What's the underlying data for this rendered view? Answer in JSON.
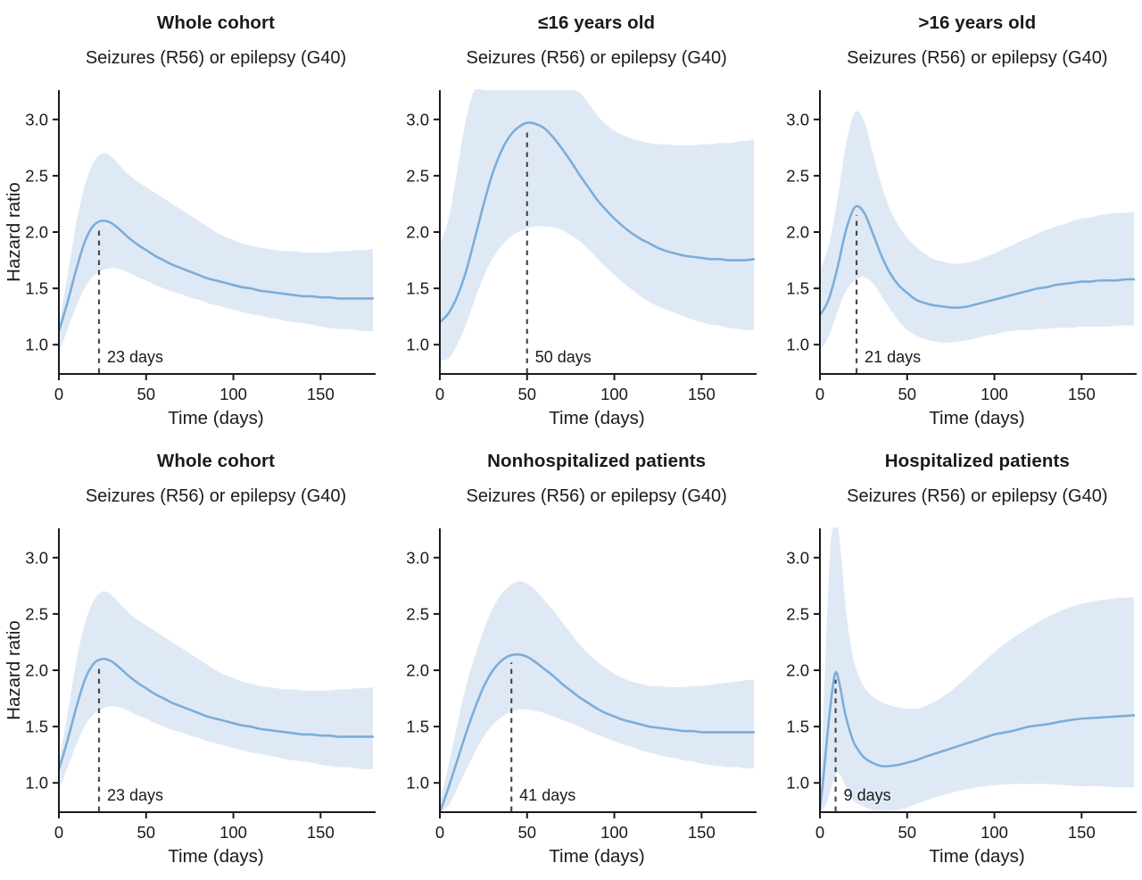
{
  "figure": {
    "background": "#ffffff",
    "colors": {
      "line": "#7cadd8",
      "band": "#dfe9f6",
      "dashed": "#4a4a4a",
      "axis": "#1a1a1a",
      "text": "#1a1a1a"
    }
  },
  "chart_data": [
    {
      "type": "line",
      "title": "Whole cohort",
      "subtitle": "Seizures (R56) or epilepsy (G40)",
      "xlabel": "Time (days)",
      "ylabel": "Hazard ratio",
      "xlim": [
        0,
        180
      ],
      "ylim": [
        0.74,
        3.26
      ],
      "xticks": [
        0,
        50,
        100,
        150
      ],
      "yticks": [
        1.0,
        1.5,
        2.0,
        2.5,
        3.0
      ],
      "grid": false,
      "peak": {
        "day": 23,
        "label": "23 days"
      },
      "x": [
        0,
        5,
        10,
        15,
        20,
        25,
        30,
        35,
        40,
        45,
        50,
        55,
        60,
        65,
        70,
        75,
        80,
        85,
        90,
        95,
        100,
        105,
        110,
        115,
        120,
        125,
        130,
        135,
        140,
        145,
        150,
        155,
        160,
        165,
        170,
        175,
        180
      ],
      "hazard_ratio": [
        1.12,
        1.38,
        1.67,
        1.92,
        2.06,
        2.1,
        2.08,
        2.02,
        1.95,
        1.89,
        1.84,
        1.79,
        1.75,
        1.71,
        1.68,
        1.65,
        1.62,
        1.59,
        1.57,
        1.55,
        1.53,
        1.51,
        1.5,
        1.48,
        1.47,
        1.46,
        1.45,
        1.44,
        1.43,
        1.43,
        1.42,
        1.42,
        1.41,
        1.41,
        1.41,
        1.41,
        1.41
      ],
      "ci_upper": [
        1.18,
        1.62,
        2.08,
        2.42,
        2.62,
        2.7,
        2.67,
        2.59,
        2.51,
        2.45,
        2.4,
        2.35,
        2.3,
        2.25,
        2.2,
        2.15,
        2.1,
        2.05,
        2.0,
        1.96,
        1.93,
        1.9,
        1.88,
        1.86,
        1.85,
        1.84,
        1.83,
        1.83,
        1.82,
        1.82,
        1.82,
        1.82,
        1.83,
        1.83,
        1.84,
        1.84,
        1.85
      ],
      "ci_lower": [
        0.92,
        1.14,
        1.34,
        1.51,
        1.61,
        1.66,
        1.68,
        1.67,
        1.64,
        1.6,
        1.57,
        1.53,
        1.5,
        1.47,
        1.45,
        1.42,
        1.4,
        1.37,
        1.35,
        1.33,
        1.31,
        1.29,
        1.27,
        1.26,
        1.24,
        1.23,
        1.21,
        1.2,
        1.19,
        1.18,
        1.16,
        1.15,
        1.14,
        1.14,
        1.13,
        1.12,
        1.12
      ]
    },
    {
      "type": "line",
      "title": "≤16 years old",
      "subtitle": "Seizures (R56) or epilepsy (G40)",
      "xlabel": "Time (days)",
      "ylabel": "",
      "xlim": [
        0,
        180
      ],
      "ylim": [
        0.74,
        3.26
      ],
      "xticks": [
        0,
        50,
        100,
        150
      ],
      "yticks": [
        1.0,
        1.5,
        2.0,
        2.5,
        3.0
      ],
      "grid": false,
      "peak": {
        "day": 50,
        "label": "50 days"
      },
      "x": [
        0,
        5,
        10,
        15,
        20,
        25,
        30,
        35,
        40,
        45,
        50,
        55,
        60,
        65,
        70,
        75,
        80,
        85,
        90,
        95,
        100,
        105,
        110,
        115,
        120,
        125,
        130,
        135,
        140,
        145,
        150,
        155,
        160,
        165,
        170,
        175,
        180
      ],
      "hazard_ratio": [
        1.2,
        1.28,
        1.43,
        1.65,
        1.94,
        2.24,
        2.51,
        2.71,
        2.85,
        2.93,
        2.97,
        2.96,
        2.92,
        2.84,
        2.74,
        2.63,
        2.51,
        2.4,
        2.29,
        2.2,
        2.12,
        2.05,
        1.99,
        1.94,
        1.9,
        1.86,
        1.83,
        1.81,
        1.79,
        1.78,
        1.77,
        1.76,
        1.76,
        1.75,
        1.75,
        1.75,
        1.76
      ],
      "ci_upper": [
        1.88,
        2.12,
        2.55,
        3.0,
        3.26,
        3.26,
        3.26,
        3.26,
        3.26,
        3.26,
        3.26,
        3.26,
        3.26,
        3.26,
        3.26,
        3.26,
        3.24,
        3.15,
        3.04,
        2.96,
        2.9,
        2.86,
        2.83,
        2.81,
        2.79,
        2.78,
        2.78,
        2.77,
        2.77,
        2.77,
        2.78,
        2.78,
        2.79,
        2.79,
        2.8,
        2.81,
        2.82
      ],
      "ci_lower": [
        0.86,
        0.88,
        1.0,
        1.18,
        1.4,
        1.6,
        1.76,
        1.87,
        1.95,
        2.0,
        2.03,
        2.05,
        2.05,
        2.04,
        2.02,
        1.97,
        1.92,
        1.85,
        1.77,
        1.69,
        1.62,
        1.55,
        1.49,
        1.43,
        1.38,
        1.34,
        1.31,
        1.28,
        1.25,
        1.22,
        1.2,
        1.18,
        1.17,
        1.15,
        1.14,
        1.13,
        1.13
      ]
    },
    {
      "type": "line",
      "title": ">16 years old",
      "subtitle": "Seizures (R56) or epilepsy (G40)",
      "xlabel": "Time (days)",
      "ylabel": "",
      "xlim": [
        0,
        180
      ],
      "ylim": [
        0.74,
        3.26
      ],
      "xticks": [
        0,
        50,
        100,
        150
      ],
      "yticks": [
        1.0,
        1.5,
        2.0,
        2.5,
        3.0
      ],
      "grid": false,
      "peak": {
        "day": 21,
        "label": "21 days"
      },
      "x": [
        0,
        5,
        10,
        15,
        20,
        25,
        30,
        35,
        40,
        45,
        50,
        55,
        60,
        65,
        70,
        75,
        80,
        85,
        90,
        95,
        100,
        105,
        110,
        115,
        120,
        125,
        130,
        135,
        140,
        145,
        150,
        155,
        160,
        165,
        170,
        175,
        180
      ],
      "hazard_ratio": [
        1.26,
        1.4,
        1.68,
        2.02,
        2.22,
        2.18,
        2.0,
        1.8,
        1.64,
        1.53,
        1.46,
        1.4,
        1.37,
        1.35,
        1.34,
        1.33,
        1.33,
        1.34,
        1.36,
        1.38,
        1.4,
        1.42,
        1.44,
        1.46,
        1.48,
        1.5,
        1.51,
        1.53,
        1.54,
        1.55,
        1.56,
        1.56,
        1.57,
        1.57,
        1.57,
        1.58,
        1.58
      ],
      "ci_upper": [
        1.66,
        1.88,
        2.28,
        2.78,
        3.06,
        3.0,
        2.72,
        2.43,
        2.21,
        2.06,
        1.95,
        1.87,
        1.81,
        1.76,
        1.74,
        1.72,
        1.72,
        1.73,
        1.75,
        1.78,
        1.81,
        1.85,
        1.88,
        1.92,
        1.95,
        1.99,
        2.02,
        2.05,
        2.07,
        2.1,
        2.12,
        2.13,
        2.15,
        2.16,
        2.17,
        2.17,
        2.18
      ],
      "ci_lower": [
        0.95,
        1.07,
        1.29,
        1.48,
        1.57,
        1.6,
        1.55,
        1.44,
        1.32,
        1.21,
        1.13,
        1.08,
        1.05,
        1.03,
        1.02,
        1.02,
        1.03,
        1.04,
        1.06,
        1.08,
        1.09,
        1.11,
        1.12,
        1.13,
        1.13,
        1.14,
        1.14,
        1.15,
        1.15,
        1.15,
        1.16,
        1.16,
        1.16,
        1.16,
        1.17,
        1.17,
        1.17
      ]
    },
    {
      "type": "line",
      "title": "Whole cohort",
      "subtitle": "Seizures (R56) or epilepsy (G40)",
      "xlabel": "Time (days)",
      "ylabel": "Hazard ratio",
      "xlim": [
        0,
        180
      ],
      "ylim": [
        0.74,
        3.26
      ],
      "xticks": [
        0,
        50,
        100,
        150
      ],
      "yticks": [
        1.0,
        1.5,
        2.0,
        2.5,
        3.0
      ],
      "grid": false,
      "peak": {
        "day": 23,
        "label": "23 days"
      },
      "x": [
        0,
        5,
        10,
        15,
        20,
        25,
        30,
        35,
        40,
        45,
        50,
        55,
        60,
        65,
        70,
        75,
        80,
        85,
        90,
        95,
        100,
        105,
        110,
        115,
        120,
        125,
        130,
        135,
        140,
        145,
        150,
        155,
        160,
        165,
        170,
        175,
        180
      ],
      "hazard_ratio": [
        1.12,
        1.38,
        1.67,
        1.92,
        2.06,
        2.1,
        2.08,
        2.02,
        1.95,
        1.89,
        1.84,
        1.79,
        1.75,
        1.71,
        1.68,
        1.65,
        1.62,
        1.59,
        1.57,
        1.55,
        1.53,
        1.51,
        1.5,
        1.48,
        1.47,
        1.46,
        1.45,
        1.44,
        1.43,
        1.43,
        1.42,
        1.42,
        1.41,
        1.41,
        1.41,
        1.41,
        1.41
      ],
      "ci_upper": [
        1.18,
        1.62,
        2.08,
        2.42,
        2.62,
        2.7,
        2.67,
        2.59,
        2.51,
        2.45,
        2.4,
        2.35,
        2.3,
        2.25,
        2.2,
        2.15,
        2.1,
        2.05,
        2.0,
        1.96,
        1.93,
        1.9,
        1.88,
        1.86,
        1.85,
        1.84,
        1.83,
        1.83,
        1.82,
        1.82,
        1.82,
        1.82,
        1.83,
        1.83,
        1.84,
        1.84,
        1.85
      ],
      "ci_lower": [
        0.92,
        1.14,
        1.34,
        1.51,
        1.61,
        1.66,
        1.68,
        1.67,
        1.64,
        1.6,
        1.57,
        1.53,
        1.5,
        1.47,
        1.45,
        1.42,
        1.4,
        1.37,
        1.35,
        1.33,
        1.31,
        1.29,
        1.27,
        1.26,
        1.24,
        1.23,
        1.21,
        1.2,
        1.19,
        1.18,
        1.16,
        1.15,
        1.14,
        1.14,
        1.13,
        1.12,
        1.12
      ]
    },
    {
      "type": "line",
      "title": "Nonhospitalized patients",
      "subtitle": "Seizures (R56) or epilepsy (G40)",
      "xlabel": "Time (days)",
      "ylabel": "",
      "xlim": [
        0,
        180
      ],
      "ylim": [
        0.74,
        3.26
      ],
      "xticks": [
        0,
        50,
        100,
        150
      ],
      "yticks": [
        1.0,
        1.5,
        2.0,
        2.5,
        3.0
      ],
      "grid": false,
      "peak": {
        "day": 41,
        "label": "41 days"
      },
      "x": [
        0,
        5,
        10,
        15,
        20,
        25,
        30,
        35,
        40,
        45,
        50,
        55,
        60,
        65,
        70,
        75,
        80,
        85,
        90,
        95,
        100,
        105,
        110,
        115,
        120,
        125,
        130,
        135,
        140,
        145,
        150,
        155,
        160,
        165,
        170,
        175,
        180
      ],
      "hazard_ratio": [
        0.74,
        0.96,
        1.2,
        1.44,
        1.66,
        1.85,
        1.99,
        2.08,
        2.13,
        2.14,
        2.12,
        2.07,
        2.01,
        1.95,
        1.88,
        1.82,
        1.76,
        1.71,
        1.66,
        1.62,
        1.59,
        1.56,
        1.54,
        1.52,
        1.5,
        1.49,
        1.48,
        1.47,
        1.46,
        1.46,
        1.45,
        1.45,
        1.45,
        1.45,
        1.45,
        1.45,
        1.45
      ],
      "ci_upper": [
        0.82,
        1.16,
        1.52,
        1.86,
        2.12,
        2.35,
        2.54,
        2.67,
        2.75,
        2.79,
        2.77,
        2.71,
        2.62,
        2.53,
        2.43,
        2.33,
        2.23,
        2.15,
        2.08,
        2.02,
        1.97,
        1.93,
        1.9,
        1.88,
        1.86,
        1.86,
        1.85,
        1.85,
        1.85,
        1.86,
        1.86,
        1.87,
        1.88,
        1.89,
        1.9,
        1.91,
        1.92
      ],
      "ci_lower": [
        0.74,
        0.8,
        0.95,
        1.11,
        1.27,
        1.41,
        1.51,
        1.58,
        1.63,
        1.65,
        1.65,
        1.64,
        1.62,
        1.59,
        1.56,
        1.53,
        1.5,
        1.46,
        1.43,
        1.4,
        1.37,
        1.34,
        1.32,
        1.29,
        1.27,
        1.25,
        1.23,
        1.22,
        1.2,
        1.19,
        1.17,
        1.16,
        1.15,
        1.14,
        1.14,
        1.13,
        1.13
      ]
    },
    {
      "type": "line",
      "title": "Hospitalized patients",
      "subtitle": "Seizures (R56) or epilepsy (G40)",
      "xlabel": "Time (days)",
      "ylabel": "",
      "xlim": [
        0,
        180
      ],
      "ylim": [
        0.74,
        3.26
      ],
      "xticks": [
        0,
        50,
        100,
        150
      ],
      "yticks": [
        1.0,
        1.5,
        2.0,
        2.5,
        3.0
      ],
      "grid": false,
      "peak": {
        "day": 9,
        "label": "9 days"
      },
      "x": [
        0,
        2,
        4,
        6,
        8,
        9,
        10,
        12,
        14,
        16,
        18,
        20,
        25,
        30,
        35,
        40,
        45,
        50,
        55,
        60,
        70,
        80,
        90,
        100,
        110,
        120,
        130,
        140,
        150,
        160,
        170,
        180
      ],
      "hazard_ratio": [
        0.76,
        1.05,
        1.38,
        1.68,
        1.92,
        1.98,
        1.96,
        1.82,
        1.65,
        1.52,
        1.42,
        1.34,
        1.23,
        1.18,
        1.15,
        1.15,
        1.16,
        1.18,
        1.2,
        1.23,
        1.28,
        1.33,
        1.38,
        1.43,
        1.46,
        1.5,
        1.52,
        1.55,
        1.57,
        1.58,
        1.59,
        1.6
      ],
      "ci_upper": [
        0.92,
        1.65,
        2.45,
        3.1,
        3.3,
        3.3,
        3.3,
        3.05,
        2.68,
        2.4,
        2.2,
        2.05,
        1.86,
        1.77,
        1.72,
        1.69,
        1.67,
        1.66,
        1.66,
        1.68,
        1.76,
        1.88,
        2.02,
        2.16,
        2.28,
        2.38,
        2.47,
        2.54,
        2.59,
        2.62,
        2.64,
        2.65
      ],
      "ci_lower": [
        0.74,
        0.77,
        0.83,
        0.93,
        1.03,
        1.07,
        1.09,
        1.06,
        0.99,
        0.92,
        0.87,
        0.83,
        0.79,
        0.76,
        0.75,
        0.75,
        0.76,
        0.78,
        0.81,
        0.84,
        0.89,
        0.93,
        0.96,
        0.98,
        0.99,
        0.99,
        0.99,
        0.98,
        0.97,
        0.97,
        0.96,
        0.96
      ]
    }
  ]
}
